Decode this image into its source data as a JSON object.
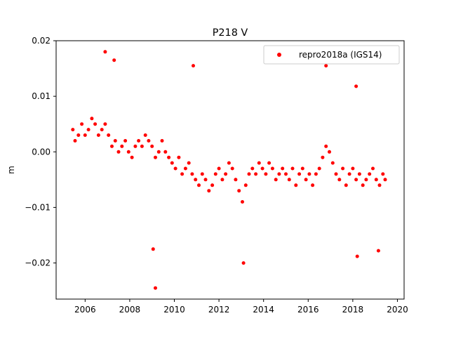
{
  "chart_data": {
    "type": "scatter",
    "title": "P218 V",
    "xlabel": "",
    "ylabel": "m",
    "xlim": [
      2004.7,
      2020.3
    ],
    "ylim": [
      -0.0265,
      0.02
    ],
    "x_ticks": [
      2006,
      2008,
      2010,
      2012,
      2014,
      2016,
      2018,
      2020
    ],
    "x_tick_labels": [
      "2006",
      "2008",
      "2010",
      "2012",
      "2014",
      "2016",
      "2018",
      "2020"
    ],
    "y_ticks": [
      0.02,
      0.01,
      0.0,
      -0.01,
      -0.02
    ],
    "y_tick_labels": [
      "0.02",
      "0.01",
      "0.00",
      "−0.01",
      "−0.02"
    ],
    "grid": false,
    "legend_position": "top-right",
    "marker_color": "#ff0000",
    "series": [
      {
        "name": "repro2018a (IGS14)",
        "x": [
          2005.45,
          2005.55,
          2005.7,
          2005.85,
          2006.0,
          2006.15,
          2006.3,
          2006.45,
          2006.6,
          2006.75,
          2006.9,
          2007.05,
          2007.2,
          2007.35,
          2007.5,
          2007.65,
          2007.8,
          2007.95,
          2008.1,
          2008.25,
          2008.4,
          2008.55,
          2008.7,
          2008.85,
          2009.0,
          2009.15,
          2009.3,
          2009.45,
          2009.6,
          2009.75,
          2009.9,
          2010.05,
          2010.2,
          2010.35,
          2010.5,
          2010.65,
          2010.8,
          2010.95,
          2011.1,
          2011.25,
          2011.4,
          2011.55,
          2011.7,
          2011.85,
          2012.0,
          2012.15,
          2012.3,
          2012.45,
          2012.6,
          2012.75,
          2012.9,
          2013.05,
          2013.2,
          2013.35,
          2013.5,
          2013.65,
          2013.8,
          2013.95,
          2014.1,
          2014.25,
          2014.4,
          2014.55,
          2014.7,
          2014.85,
          2015.0,
          2015.15,
          2015.3,
          2015.45,
          2015.6,
          2015.75,
          2015.9,
          2016.05,
          2016.2,
          2016.35,
          2016.5,
          2016.65,
          2016.8,
          2016.95,
          2017.1,
          2017.25,
          2017.4,
          2017.55,
          2017.7,
          2017.85,
          2018.0,
          2018.15,
          2018.3,
          2018.45,
          2018.6,
          2018.75,
          2018.9,
          2019.05,
          2019.2,
          2019.35,
          2019.45,
          2006.9,
          2007.3,
          2009.15,
          2009.05,
          2010.85,
          2013.1,
          2016.8,
          2018.15,
          2018.2,
          2019.15
        ],
        "y": [
          0.004,
          0.002,
          0.003,
          0.005,
          0.003,
          0.004,
          0.006,
          0.005,
          0.003,
          0.004,
          0.005,
          0.003,
          0.001,
          0.002,
          0.0,
          0.001,
          0.002,
          0.0,
          -0.001,
          0.001,
          0.002,
          0.001,
          0.003,
          0.002,
          0.001,
          -0.001,
          0.0,
          0.002,
          0.0,
          -0.001,
          -0.002,
          -0.003,
          -0.001,
          -0.004,
          -0.003,
          -0.002,
          -0.004,
          -0.005,
          -0.006,
          -0.004,
          -0.005,
          -0.007,
          -0.006,
          -0.004,
          -0.003,
          -0.005,
          -0.004,
          -0.002,
          -0.003,
          -0.005,
          -0.007,
          -0.009,
          -0.006,
          -0.004,
          -0.003,
          -0.004,
          -0.002,
          -0.003,
          -0.004,
          -0.002,
          -0.003,
          -0.005,
          -0.004,
          -0.003,
          -0.004,
          -0.005,
          -0.003,
          -0.006,
          -0.004,
          -0.003,
          -0.005,
          -0.004,
          -0.006,
          -0.004,
          -0.003,
          -0.001,
          0.001,
          0.0,
          -0.002,
          -0.004,
          -0.005,
          -0.003,
          -0.006,
          -0.004,
          -0.003,
          -0.005,
          -0.004,
          -0.006,
          -0.005,
          -0.004,
          -0.003,
          -0.005,
          -0.006,
          -0.004,
          -0.005,
          0.018,
          0.0165,
          -0.0245,
          -0.0175,
          0.0155,
          -0.02,
          0.0155,
          0.0118,
          -0.0188,
          -0.0178
        ]
      }
    ]
  }
}
